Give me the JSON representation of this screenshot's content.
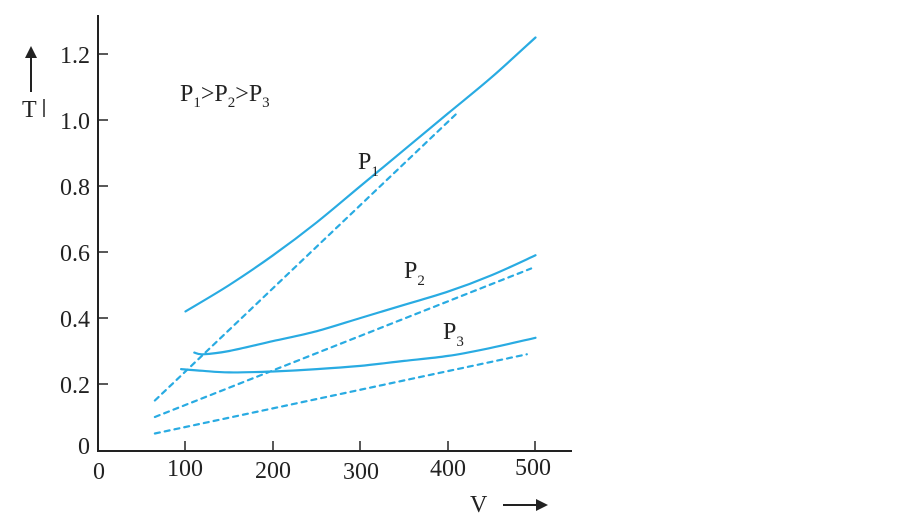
{
  "chart_data": {
    "type": "line",
    "title": "",
    "xlabel": "V",
    "ylabel": "T",
    "xlim": [
      0,
      540
    ],
    "ylim": [
      0,
      1.3
    ],
    "x_ticks": [
      "0",
      "100",
      "200",
      "300",
      "400",
      "500"
    ],
    "y_ticks": [
      "0",
      "0.2",
      "0.4",
      "0.6",
      "0.8",
      "1.0",
      "1.2"
    ],
    "grid": false,
    "legend_text": {
      "p1": "P",
      "s1": "1",
      "gt1": ">",
      "p2": "P",
      "s2": "2",
      "gt2": ">",
      "p3": "P",
      "s3": "3"
    },
    "series": [
      {
        "name": "P1",
        "label_main": "P",
        "label_sub": "1",
        "color": "#29abe2",
        "style": "solid",
        "x": [
          100,
          150,
          200,
          250,
          300,
          350,
          400,
          450,
          500
        ],
        "y": [
          0.42,
          0.5,
          0.59,
          0.69,
          0.8,
          0.91,
          1.02,
          1.13,
          1.25
        ]
      },
      {
        "name": "P1 ideal",
        "color": "#29abe2",
        "style": "dashed",
        "x": [
          65,
          410
        ],
        "y": [
          0.15,
          1.02
        ]
      },
      {
        "name": "P2",
        "label_main": "P",
        "label_sub": "2",
        "color": "#29abe2",
        "style": "solid",
        "x": [
          110,
          120,
          150,
          200,
          250,
          300,
          350,
          400,
          450,
          500
        ],
        "y": [
          0.295,
          0.29,
          0.3,
          0.33,
          0.36,
          0.4,
          0.44,
          0.48,
          0.53,
          0.59
        ]
      },
      {
        "name": "P2 ideal",
        "color": "#29abe2",
        "style": "dashed",
        "x": [
          65,
          495
        ],
        "y": [
          0.1,
          0.55
        ]
      },
      {
        "name": "P3",
        "label_main": "P",
        "label_sub": "3",
        "color": "#29abe2",
        "style": "solid",
        "x": [
          95,
          120,
          150,
          200,
          250,
          300,
          350,
          400,
          450,
          500
        ],
        "y": [
          0.245,
          0.24,
          0.235,
          0.238,
          0.245,
          0.255,
          0.27,
          0.285,
          0.31,
          0.34
        ]
      },
      {
        "name": "P3 ideal",
        "color": "#29abe2",
        "style": "dashed",
        "x": [
          65,
          490
        ],
        "y": [
          0.05,
          0.29
        ]
      }
    ]
  }
}
